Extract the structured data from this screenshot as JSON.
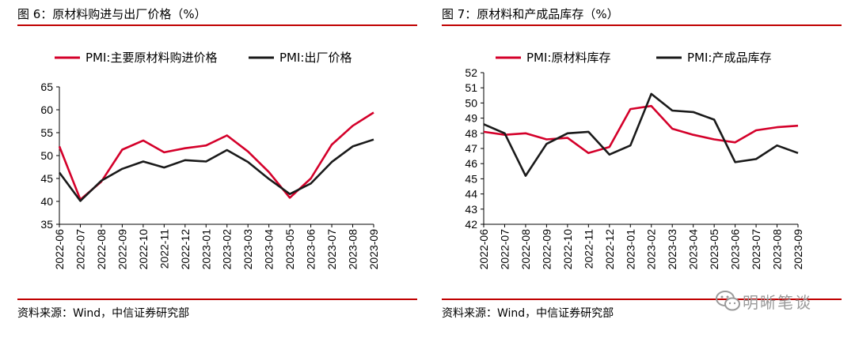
{
  "watermark": {
    "text": "明晰笔谈"
  },
  "chart_data": [
    {
      "type": "line",
      "title": "图 6：原材料购进与出厂价格（%）",
      "source": "资料来源：Wind，中信证券研究部",
      "categories": [
        "2022-06",
        "2022-07",
        "2022-08",
        "2022-09",
        "2022-10",
        "2022-11",
        "2022-12",
        "2023-01",
        "2023-02",
        "2023-03",
        "2023-04",
        "2023-05",
        "2023-06",
        "2023-07",
        "2023-08",
        "2023-09"
      ],
      "ylim": [
        35,
        65
      ],
      "yticks": [
        35,
        40,
        45,
        50,
        55,
        60,
        65
      ],
      "legend_position": "top",
      "series": [
        {
          "name": "PMI:主要原材料购进价格",
          "color": "#d4002a",
          "values": [
            52.0,
            40.4,
            44.3,
            51.3,
            53.3,
            50.7,
            51.6,
            52.2,
            54.4,
            50.9,
            46.4,
            40.8,
            45.0,
            52.4,
            56.5,
            59.4
          ]
        },
        {
          "name": "PMI:出厂价格",
          "color": "#1a1a1a",
          "values": [
            46.3,
            40.1,
            44.5,
            47.1,
            48.7,
            47.4,
            49.0,
            48.7,
            51.2,
            48.6,
            44.9,
            41.6,
            43.9,
            48.6,
            52.0,
            53.5
          ]
        }
      ]
    },
    {
      "type": "line",
      "title": "图 7：原材料和产成品库存（%）",
      "source": "资料来源：Wind，中信证券研究部",
      "categories": [
        "2022-06",
        "2022-07",
        "2022-08",
        "2022-09",
        "2022-10",
        "2022-11",
        "2022-12",
        "2023-01",
        "2023-02",
        "2023-03",
        "2023-04",
        "2023-05",
        "2023-06",
        "2023-07",
        "2023-08",
        "2023-09"
      ],
      "ylim": [
        42,
        52
      ],
      "yticks": [
        42,
        43,
        44,
        45,
        46,
        47,
        48,
        49,
        50,
        51,
        52
      ],
      "legend_position": "top",
      "series": [
        {
          "name": "PMI:原材料库存",
          "color": "#d4002a",
          "values": [
            48.1,
            47.9,
            48.0,
            47.6,
            47.7,
            46.7,
            47.1,
            49.6,
            49.8,
            48.3,
            47.9,
            47.6,
            47.4,
            48.2,
            48.4,
            48.5
          ]
        },
        {
          "name": "PMI:产成品库存",
          "color": "#1a1a1a",
          "values": [
            48.6,
            48.0,
            45.2,
            47.3,
            48.0,
            48.1,
            46.6,
            47.2,
            50.6,
            49.5,
            49.4,
            48.9,
            46.1,
            46.3,
            47.2,
            46.7
          ]
        }
      ]
    }
  ]
}
